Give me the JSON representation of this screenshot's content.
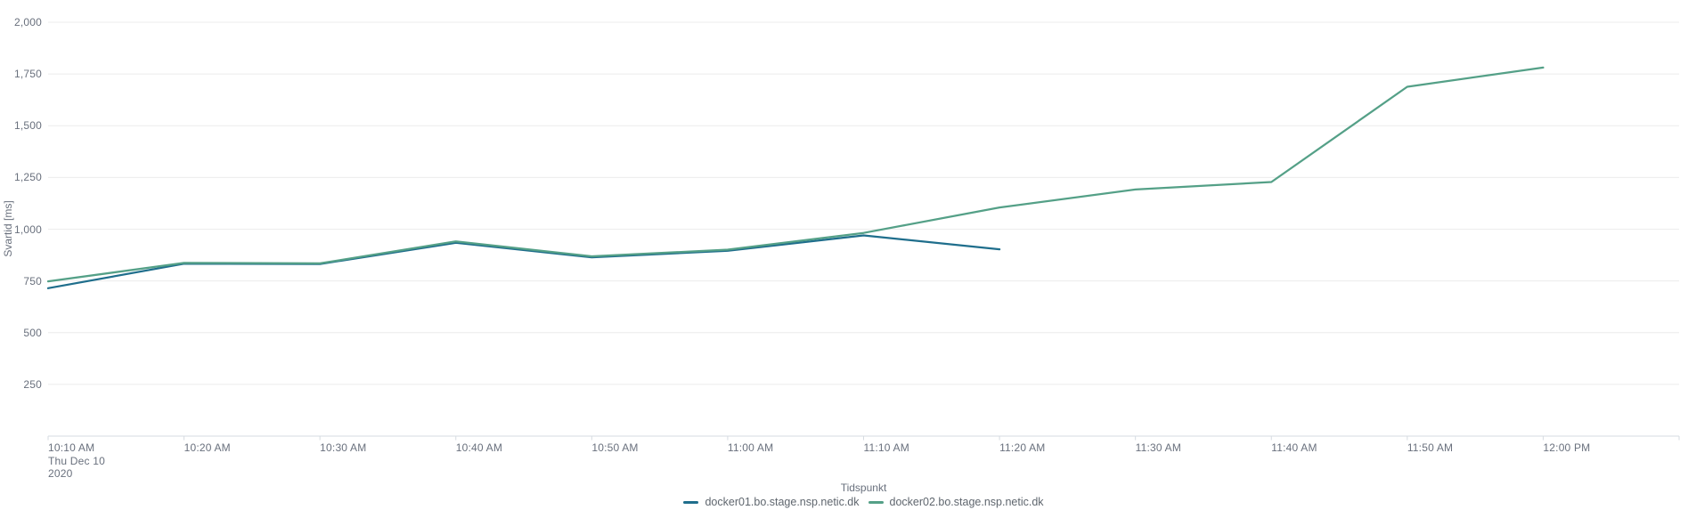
{
  "chart_data": {
    "type": "line",
    "title": "",
    "xlabel": "Tidspunkt",
    "ylabel": "Svartid [ms]",
    "ylim": [
      0,
      2000
    ],
    "grid": true,
    "legend_position": "bottom",
    "y_ticks": [
      250,
      500,
      750,
      1000,
      1250,
      1500,
      1750,
      2000
    ],
    "y_tick_labels": [
      "250",
      "500",
      "750",
      "1,000",
      "1,250",
      "1,500",
      "1,750",
      "2,000"
    ],
    "categories": [
      "10:10 AM",
      "10:20 AM",
      "10:30 AM",
      "10:40 AM",
      "10:50 AM",
      "11:00 AM",
      "11:10 AM",
      "11:20 AM",
      "11:30 AM",
      "11:40 AM",
      "11:50 AM",
      "12:00 PM"
    ],
    "first_tick_sublabels": [
      "Thu Dec 10",
      "2020"
    ],
    "series": [
      {
        "name": "docker01.bo.stage.nsp.netic.dk",
        "color": "#1f6e8c",
        "values": [
          715,
          833,
          832,
          934,
          864,
          896,
          970,
          903
        ]
      },
      {
        "name": "docker02.bo.stage.nsp.netic.dk",
        "color": "#54a087",
        "values": [
          748,
          837,
          835,
          941,
          869,
          901,
          982,
          1105,
          1192,
          1228,
          1688,
          1781
        ]
      }
    ]
  },
  "colors": {
    "grid": "#ececec",
    "axis": "#d6dbe1",
    "tick_text": "#69707d",
    "legend_text": "#5f666e"
  }
}
